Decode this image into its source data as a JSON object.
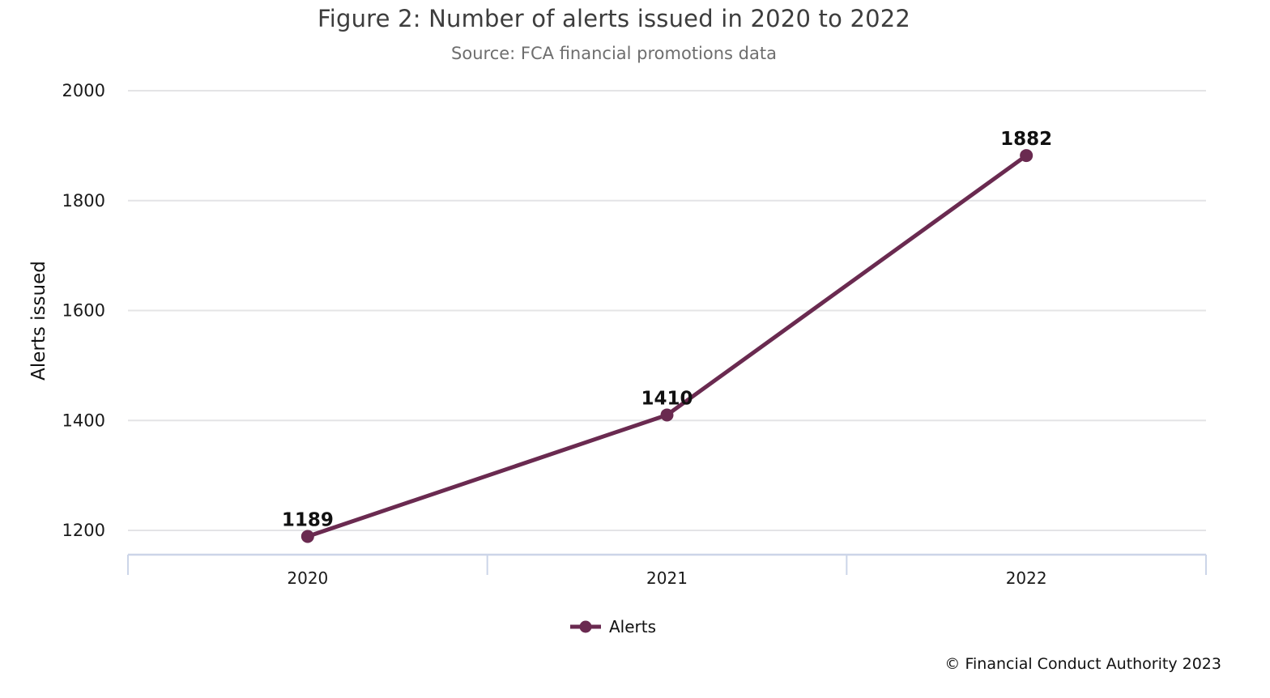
{
  "chart_data": {
    "type": "line",
    "title": "Figure 2: Number of alerts issued in 2020 to 2022",
    "subtitle": "Source: FCA financial promotions data",
    "ylabel": "Alerts issued",
    "xlabel": "",
    "categories": [
      "2020",
      "2021",
      "2022"
    ],
    "series": [
      {
        "name": "Alerts",
        "values": [
          1189,
          1410,
          1882
        ],
        "color": "#6a2a50"
      }
    ],
    "yticks": [
      1200,
      1400,
      1600,
      1800,
      2000
    ],
    "ylim": [
      1200,
      2000
    ],
    "grid": true,
    "data_labels": true,
    "legend_position": "bottom",
    "colors": {
      "gridline": "#e4e4e6",
      "axis_border": "#ccd5e8",
      "tick_label": "#1a1a1a",
      "data_label": "#111111"
    }
  },
  "footer": {
    "copyright": "© Financial Conduct Authority 2023"
  }
}
